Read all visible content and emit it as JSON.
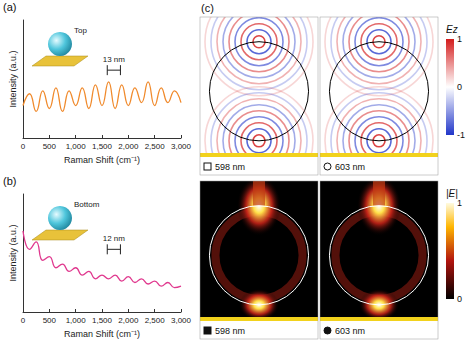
{
  "chart_data": [
    {
      "type": "line",
      "letter": "(a)",
      "x_label": "Raman Shift (cm⁻¹)",
      "y_label": "Intensity (a.u.)",
      "x": [
        0,
        125,
        250,
        375,
        500,
        625,
        750,
        875,
        1000,
        1125,
        1250,
        1375,
        1500,
        1625,
        1750,
        1875,
        2000,
        2125,
        2250,
        2375,
        2500,
        2625,
        2750,
        2875,
        3000
      ],
      "values": [
        0.55,
        0.75,
        0.45,
        0.8,
        0.5,
        0.85,
        0.45,
        0.8,
        0.55,
        0.85,
        0.5,
        0.9,
        0.55,
        0.95,
        0.5,
        0.9,
        0.55,
        0.85,
        0.6,
        0.95,
        0.55,
        0.85,
        0.6,
        0.8,
        0.6
      ],
      "color": "#f08a2c",
      "xlim": [
        0,
        3000
      ],
      "xticks": [
        0,
        500,
        1000,
        1500,
        2000,
        2500,
        3000
      ],
      "ylim": [
        0,
        2
      ],
      "tick_labels": "x",
      "inset_label": "Top",
      "annotation": {
        "text": "13 nm",
        "x": [
          1600,
          1850
        ],
        "y": 1.15
      }
    },
    {
      "type": "line",
      "letter": "(b)",
      "x_label": "Raman Shift (cm⁻¹)",
      "y_label": "Intensity (a.u.)",
      "x": [
        0,
        125,
        250,
        375,
        500,
        625,
        750,
        875,
        1000,
        1125,
        1250,
        1375,
        1500,
        1625,
        1750,
        1875,
        2000,
        2125,
        2250,
        2375,
        2500,
        2625,
        2750,
        2875,
        3000
      ],
      "values": [
        1.1,
        0.85,
        0.95,
        0.7,
        0.75,
        0.6,
        0.65,
        0.55,
        0.6,
        0.5,
        0.55,
        0.45,
        0.5,
        0.45,
        0.5,
        0.42,
        0.48,
        0.4,
        0.45,
        0.38,
        0.42,
        0.35,
        0.4,
        0.33,
        0.35
      ],
      "color": "#e0388e",
      "xlim": [
        0,
        3000
      ],
      "xticks": [
        0,
        500,
        1000,
        1500,
        2000,
        2500,
        3000
      ],
      "ylim": [
        0,
        1.6
      ],
      "tick_labels": "x",
      "inset_label": "Bottom",
      "annotation": {
        "text": "12 nm",
        "x": [
          1600,
          1850
        ],
        "y": 0.85
      }
    }
  ],
  "panel_c": {
    "letter": "(c)",
    "maps": [
      {
        "field": "Ez",
        "wavelength_label": "598 nm",
        "marker": "open square"
      },
      {
        "field": "Ez",
        "wavelength_label": "603 nm",
        "marker": "open circle"
      },
      {
        "field": "|E|",
        "wavelength_label": "598 nm",
        "marker": "filled square"
      },
      {
        "field": "|E|",
        "wavelength_label": "603 nm",
        "marker": "filled circle"
      }
    ],
    "colorbars": [
      {
        "label": "Ez",
        "range": [
          -1,
          1
        ],
        "ticks": [
          -1,
          0,
          1
        ]
      },
      {
        "label": "|E|",
        "range": [
          0,
          1
        ],
        "ticks": [
          0,
          1
        ]
      }
    ]
  }
}
